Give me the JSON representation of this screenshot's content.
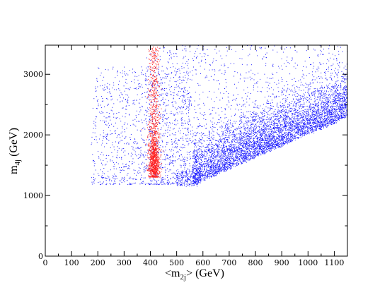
{
  "chart_data": {
    "type": "scatter",
    "xlabel": "<m2j> (GeV)",
    "xlabel_parts": {
      "pre": "<m",
      "sub": "2j",
      "post": "> (GeV)"
    },
    "ylabel": "m4j (GeV)",
    "ylabel_parts": {
      "pre": "m",
      "sub": "4j",
      "post": " (GeV)"
    },
    "xlim": [
      0,
      1150
    ],
    "ylim": [
      0,
      3480
    ],
    "x_major_ticks": [
      0,
      100,
      200,
      300,
      400,
      500,
      600,
      700,
      800,
      900,
      1000,
      1100
    ],
    "x_minor_step": 50,
    "y_major_ticks": [
      0,
      1000,
      2000,
      3000
    ],
    "y_minor_step": 500,
    "tick_labels_x": [
      "0",
      "100",
      "200",
      "300",
      "400",
      "500",
      "600",
      "700",
      "800",
      "900",
      "1000",
      "1100"
    ],
    "tick_labels_y": [
      "0",
      "1000",
      "2000",
      "3000"
    ],
    "grid": false,
    "series": [
      {
        "color": "#1a1aff",
        "description_regions": [
          {
            "x_range": [
              170,
              540
            ],
            "y_range": [
              1150,
              3100
            ],
            "note": "diffuse cloud left of kinematic edge"
          },
          {
            "x_range": [
              560,
              1150
            ],
            "y_range": [
              1150,
              3480
            ],
            "note": "dense band above diagonal edge from (570,1170) to (1150,2270)"
          }
        ]
      },
      {
        "color": "#ff2020",
        "description_regions": [
          {
            "x_center": 415,
            "x_halfwidth": 25,
            "y_range": [
              1250,
              3450
            ],
            "note": "narrow vertical band"
          }
        ]
      }
    ]
  }
}
